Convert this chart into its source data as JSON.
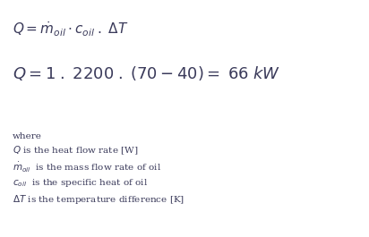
{
  "background_color": "#ffffff",
  "fig_width": 4.12,
  "fig_height": 2.65,
  "dpi": 100,
  "formula1": "$Q = \\dot{m}_{oil}\\cdot c_{oil}\\;.\\;\\Delta T$",
  "formula2": "$Q = 1\\;.\\;2200\\;.\\;(70 - 40) =\\;66\\;kW$",
  "where_text": "where",
  "line1": "$Q$ is the heat flow rate [W]",
  "line2": "$\\dot{m}_{oil}$  is the mass flow rate of oil",
  "line3": "$c_{oil}$  is the specific heat of oil",
  "line4": "$\\Delta T$ is the temperature difference [K]",
  "text_color": "#3a3a5a",
  "formula1_fontsize": 11,
  "formula2_fontsize": 13,
  "where_fontsize": 7.5,
  "desc_fontsize": 7.5
}
